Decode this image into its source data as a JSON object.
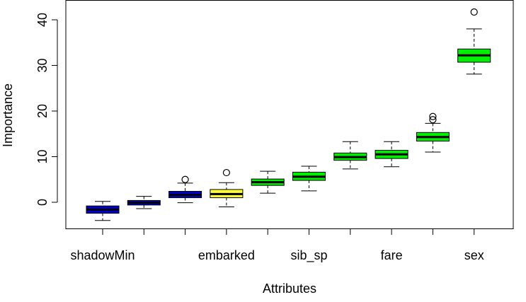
{
  "chart_data": {
    "type": "boxplot",
    "xlabel": "Attributes",
    "ylabel": "Importance",
    "ylim": [
      -6,
      44
    ],
    "yticks": [
      0,
      10,
      20,
      30,
      40
    ],
    "grid": false,
    "categories": [
      {
        "label": "shadowMin",
        "color": "#0000cc",
        "min": -4.0,
        "q1": -2.4,
        "median": -1.6,
        "q3": -0.8,
        "max": 0.2,
        "outliers": []
      },
      {
        "label": "",
        "color": "#0000cc",
        "min": -1.4,
        "q1": -0.6,
        "median": -0.1,
        "q3": 0.4,
        "max": 1.3,
        "outliers": []
      },
      {
        "label": "",
        "color": "#0000cc",
        "min": -0.1,
        "q1": 1.0,
        "median": 1.6,
        "q3": 2.4,
        "max": 4.2,
        "outliers": [
          5.0
        ]
      },
      {
        "label": "embarked",
        "color": "#ffff33",
        "min": -1.0,
        "q1": 1.0,
        "median": 1.8,
        "q3": 2.8,
        "max": 4.3,
        "outliers": [
          6.5
        ]
      },
      {
        "label": "",
        "color": "#00ee00",
        "min": 2.0,
        "q1": 3.7,
        "median": 4.4,
        "q3": 5.1,
        "max": 6.8,
        "outliers": []
      },
      {
        "label": "sib_sp",
        "color": "#00ee00",
        "min": 2.5,
        "q1": 4.8,
        "median": 5.6,
        "q3": 6.6,
        "max": 7.9,
        "outliers": []
      },
      {
        "label": "",
        "color": "#00ee00",
        "min": 7.3,
        "q1": 9.2,
        "median": 9.9,
        "q3": 10.8,
        "max": 13.3,
        "outliers": []
      },
      {
        "label": "fare",
        "color": "#00ee00",
        "min": 7.8,
        "q1": 9.6,
        "median": 10.5,
        "q3": 11.4,
        "max": 13.3,
        "outliers": []
      },
      {
        "label": "",
        "color": "#00ee00",
        "min": 11.0,
        "q1": 13.4,
        "median": 14.3,
        "q3": 15.3,
        "max": 17.3,
        "outliers": [
          18.1,
          18.8
        ]
      },
      {
        "label": "sex",
        "color": "#00ee00",
        "min": 28.1,
        "q1": 30.7,
        "median": 32.2,
        "q3": 33.6,
        "max": 38.0,
        "outliers": [
          41.7
        ]
      }
    ]
  }
}
